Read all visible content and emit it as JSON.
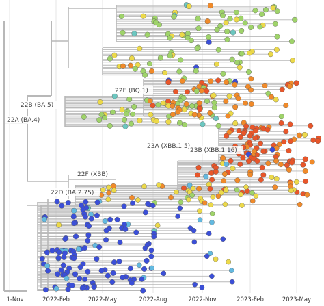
{
  "chart_data": {
    "type": "scatter",
    "title": "",
    "xlabel": "",
    "ylabel": "",
    "x_ticks": [
      "1-Nov",
      "2022-Feb",
      "2022-May",
      "2022-Aug",
      "2022-Nov",
      "2023-Feb",
      "2023-May"
    ],
    "grid": true,
    "legend": "none",
    "clades": [
      {
        "name": "22A (BA.4)",
        "color": "#9fd36a"
      },
      {
        "name": "22B (BA.5)",
        "color": "#9fd36a"
      },
      {
        "name": "22E (BQ.1)",
        "color": "#f08a2a"
      },
      {
        "name": "22D (BA.2.75)",
        "color": "#e8d24a"
      },
      {
        "name": "22F (XBB)",
        "color": "#e8d24a"
      },
      {
        "name": "23A (XBB.1.5)",
        "color": "#e8562a"
      },
      {
        "name": "23B (XBB.1.16)",
        "color": "#e8562a"
      }
    ],
    "colors": {
      "branch": "#b8b8b8",
      "blue": "#3b4fd8",
      "lightblue": "#63b9e0",
      "teal": "#6cc7c0",
      "green": "#9fd36a",
      "yellow": "#ecd94a",
      "orange": "#f08a2a",
      "redorange": "#e8562a"
    }
  }
}
